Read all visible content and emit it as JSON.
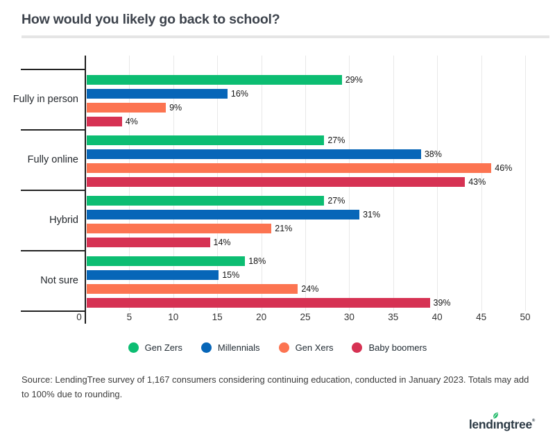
{
  "title": "How would you likely go back to school?",
  "chart_data": {
    "type": "bar",
    "orientation": "horizontal",
    "title": "How would you likely go back to school?",
    "categories": [
      "Fully in person",
      "Fully online",
      "Hybrid",
      "Not sure"
    ],
    "series": [
      {
        "name": "Gen Zers",
        "color": "#0cbd72",
        "values": [
          29,
          27,
          27,
          18
        ]
      },
      {
        "name": "Millennials",
        "color": "#0766b8",
        "values": [
          16,
          38,
          31,
          15
        ]
      },
      {
        "name": "Gen Xers",
        "color": "#fc7451",
        "values": [
          9,
          46,
          21,
          24
        ]
      },
      {
        "name": "Baby boomers",
        "color": "#d63253",
        "values": [
          4,
          43,
          14,
          39
        ]
      }
    ],
    "value_suffix": "%",
    "xlim": [
      0,
      50
    ],
    "x_ticks": [
      0,
      5,
      10,
      15,
      20,
      25,
      30,
      35,
      40,
      45,
      50
    ],
    "grid": "vertical-light",
    "legend_position": "bottom"
  },
  "footer": {
    "source_text": "Source: LendingTree survey of 1,167 consumers considering continuing education, conducted in January 2023. Totals may add to 100% due to rounding."
  },
  "logo": {
    "part_before": "lend",
    "dotless_i": "ı",
    "part_after": "ngtree",
    "registered": "®",
    "leaf_color": "#1eb967"
  }
}
